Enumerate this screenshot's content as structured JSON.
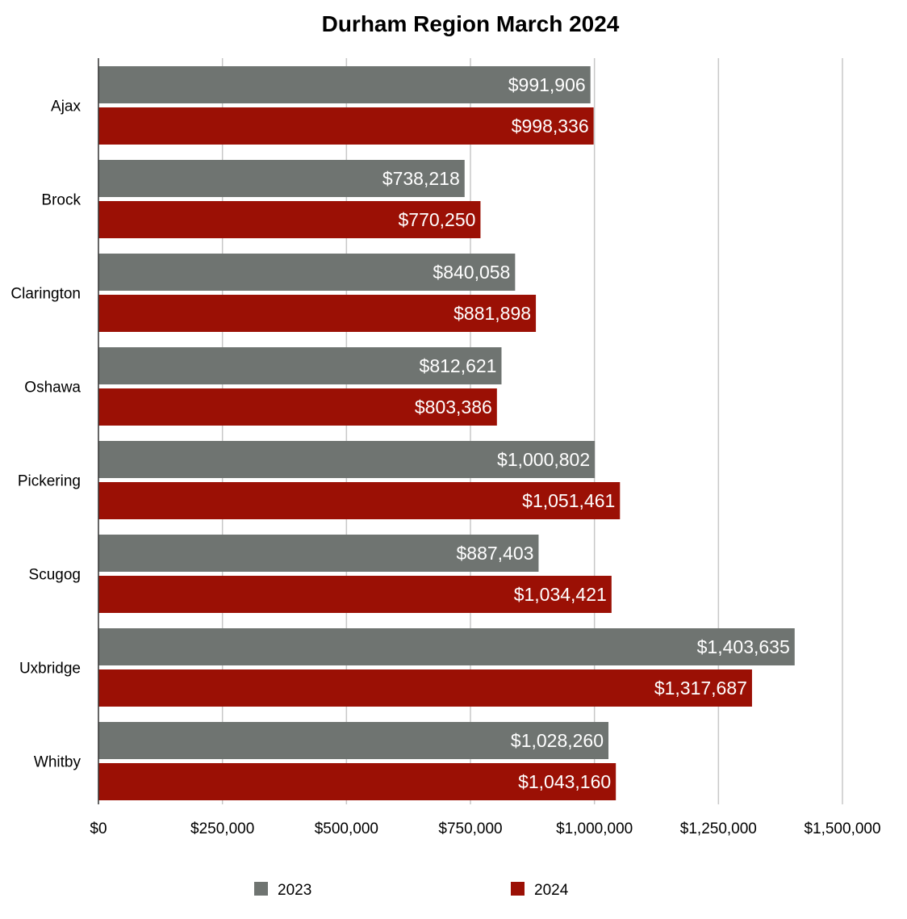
{
  "chart_data": {
    "type": "bar",
    "orientation": "horizontal",
    "title": "Durham Region March 2024",
    "xlabel": "",
    "ylabel": "",
    "categories": [
      "Ajax",
      "Brock",
      "Clarington",
      "Oshawa",
      "Pickering",
      "Scugog",
      "Uxbridge",
      "Whitby"
    ],
    "series": [
      {
        "name": "2023",
        "color": "#6f7471",
        "values": [
          991906,
          738218,
          840058,
          812621,
          1000802,
          887403,
          1403635,
          1028260
        ],
        "labels": [
          "$991,906",
          "$738,218",
          "$840,058",
          "$812,621",
          "$1,000,802",
          "$887,403",
          "$1,403,635",
          "$1,028,260"
        ]
      },
      {
        "name": "2024",
        "color": "#9b1005",
        "values": [
          998336,
          770250,
          881898,
          803386,
          1051461,
          1034421,
          1317687,
          1043160
        ],
        "labels": [
          "$998,336",
          "$770,250",
          "$881,898",
          "$803,386",
          "$1,051,461",
          "$1,034,421",
          "$1,317,687",
          "$1,043,160"
        ]
      }
    ],
    "xlim": [
      0,
      1500000
    ],
    "ticks": [
      0,
      250000,
      500000,
      750000,
      1000000,
      1250000,
      1500000
    ],
    "tick_labels": [
      "$0",
      "$250,000",
      "$500,000",
      "$750,000",
      "$1,000,000",
      "$1,250,000",
      "$1,500,000"
    ],
    "grid": true,
    "legend_position": "bottom"
  }
}
